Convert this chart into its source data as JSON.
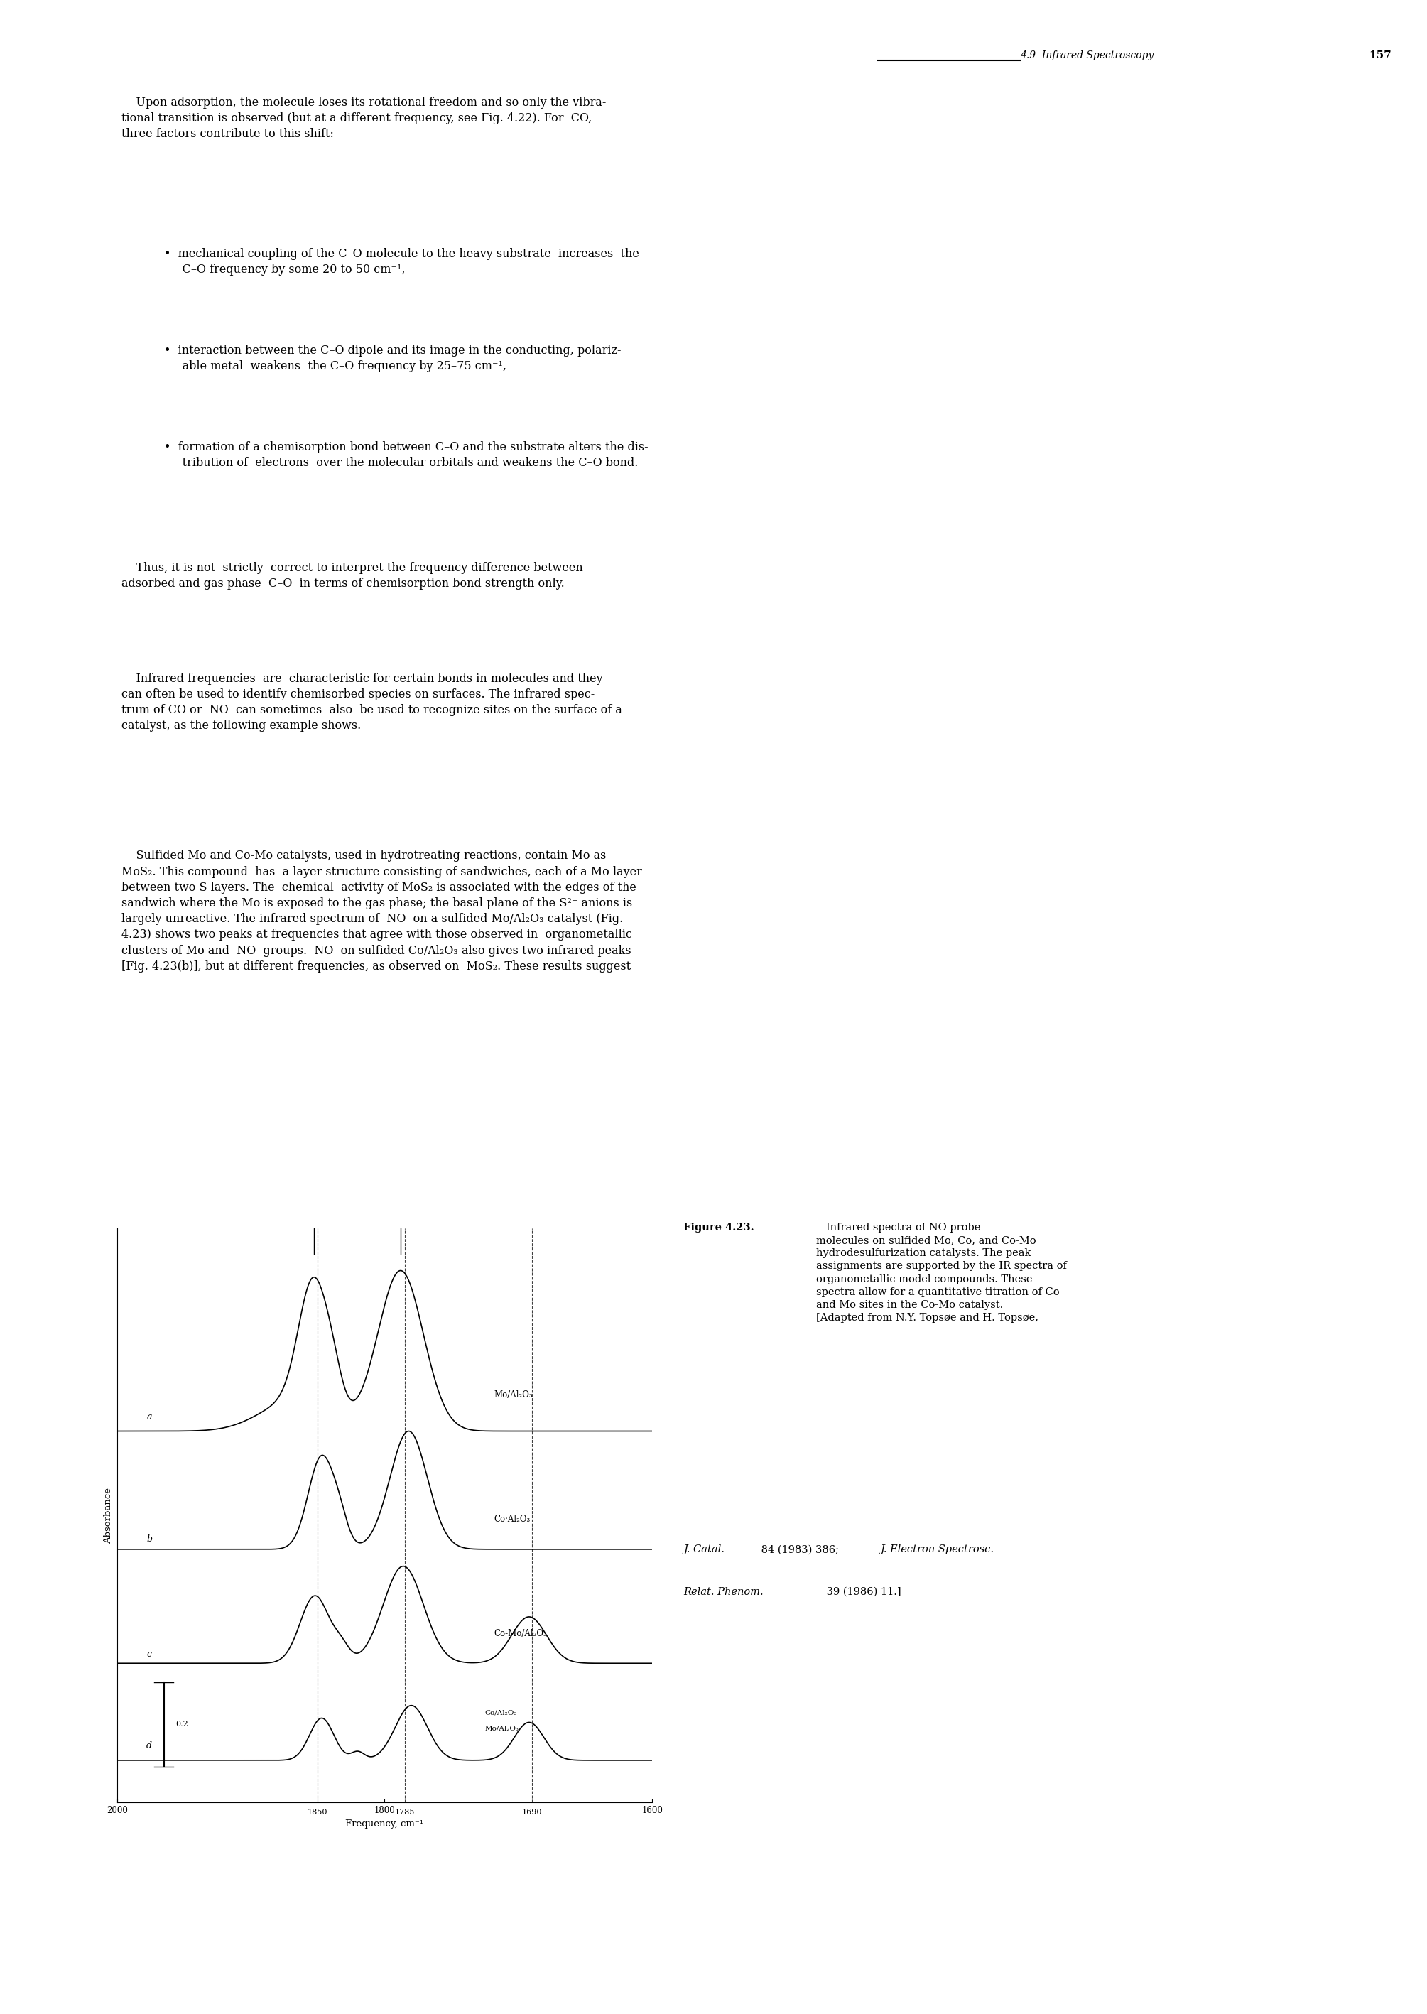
{
  "page_header": "4.9  Infrared Spectroscopy",
  "page_number": "157",
  "xlabel": "Frequency, cm⁻¹",
  "ylabel": "Absorbance",
  "xmin": 2000,
  "xmax": 1600,
  "dashed_lines": [
    1850,
    1785,
    1690
  ],
  "scale_bar_value": "0.2",
  "background_color": "#ffffff",
  "body_font": 11.5,
  "fig_cap_font": 10.5,
  "header_font": 10
}
